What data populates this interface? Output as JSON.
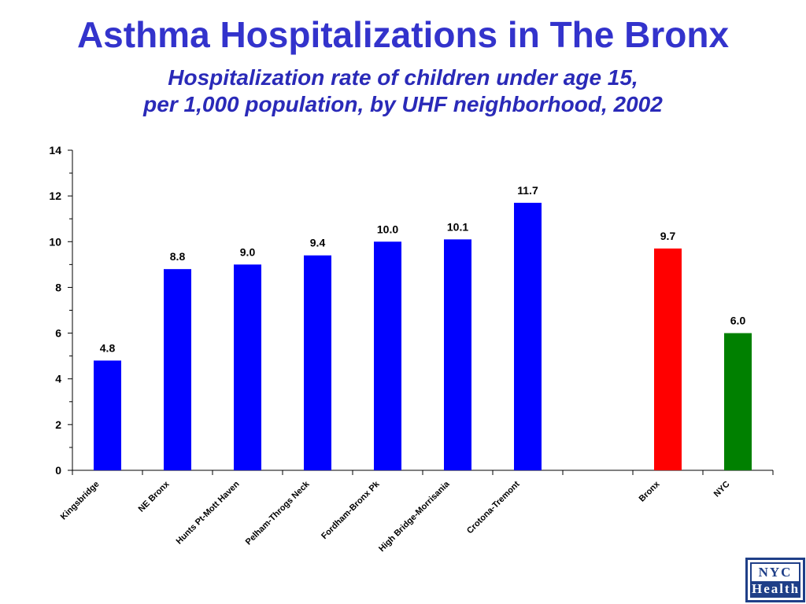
{
  "header": {
    "title": "Asthma Hospitalizations in The Bronx",
    "subtitle_line1": "Hospitalization rate of children under age 15,",
    "subtitle_line2": "per 1,000 population, by UHF neighborhood, 2002"
  },
  "logo": {
    "line1": "NYC",
    "line2": "Health"
  },
  "chart_data": {
    "type": "bar",
    "title": "Asthma Hospitalizations in The Bronx",
    "subtitle": "Hospitalization rate of children under age 15, per 1,000 population, by UHF neighborhood, 2002",
    "xlabel": "",
    "ylabel": "",
    "ylim": [
      0,
      14
    ],
    "yticks": [
      0,
      2,
      4,
      6,
      8,
      10,
      12,
      14
    ],
    "grid": false,
    "legend": "none",
    "categories": [
      "Kingsbridge",
      "NE Bronx",
      "Hunts Pt-Mott Haven",
      "Pelham-Throgs Neck",
      "Fordham-Bronx Pk",
      "High Bridge-Morrisania",
      "Crotona-Tremont",
      "",
      "Bronx",
      "NYC"
    ],
    "values": [
      4.8,
      8.8,
      9.0,
      9.4,
      10.0,
      10.1,
      11.7,
      null,
      9.7,
      6.0
    ],
    "data_labels": [
      "4.8",
      "8.8",
      "9.0",
      "9.4",
      "10.0",
      "10.1",
      "11.7",
      "",
      "9.7",
      "6.0"
    ],
    "colors": [
      "#0000ff",
      "#0000ff",
      "#0000ff",
      "#0000ff",
      "#0000ff",
      "#0000ff",
      "#0000ff",
      "#0000ff",
      "#ff0000",
      "#008000"
    ]
  }
}
